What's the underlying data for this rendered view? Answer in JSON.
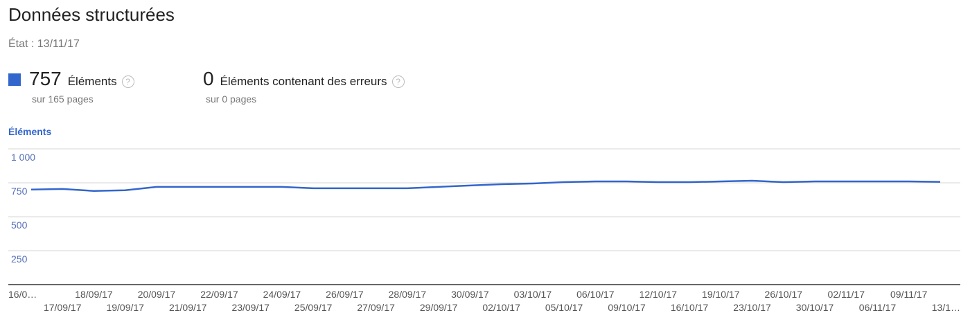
{
  "header": {
    "title": "Données structurées",
    "state": "État : 13/11/17"
  },
  "metrics": [
    {
      "value": "757",
      "label": "Éléments",
      "sub": "sur 165 pages",
      "help_icon": "question-circle-icon",
      "color": "#3366cc"
    },
    {
      "value": "0",
      "label": "Éléments contenant des erreurs",
      "sub": "sur 0 pages",
      "help_icon": "question-circle-icon"
    }
  ],
  "chart_data": {
    "type": "line",
    "title": "Éléments",
    "ylim": [
      0,
      1000
    ],
    "yticks": [
      1000,
      750,
      500,
      250
    ],
    "ytick_labels": [
      "1 000",
      "750",
      "500",
      "250"
    ],
    "grid": true,
    "color": "#3366cc",
    "x_labels": [
      "16/0…",
      "17/09/17",
      "18/09/17",
      "19/09/17",
      "20/09/17",
      "21/09/17",
      "22/09/17",
      "23/09/17",
      "24/09/17",
      "25/09/17",
      "26/09/17",
      "27/09/17",
      "28/09/17",
      "29/09/17",
      "30/09/17",
      "02/10/17",
      "03/10/17",
      "05/10/17",
      "06/10/17",
      "09/10/17",
      "12/10/17",
      "16/10/17",
      "19/10/17",
      "23/10/17",
      "26/10/17",
      "30/10/17",
      "02/11/17",
      "06/11/17",
      "09/11/17",
      "13/1…"
    ],
    "series": [
      {
        "values": [
          700,
          705,
          690,
          695,
          720,
          720,
          720,
          720,
          720,
          710,
          710,
          710,
          710,
          720,
          730,
          740,
          745,
          755,
          760,
          760,
          755,
          755,
          760,
          765,
          755,
          760,
          760,
          760,
          760,
          757
        ]
      }
    ]
  }
}
